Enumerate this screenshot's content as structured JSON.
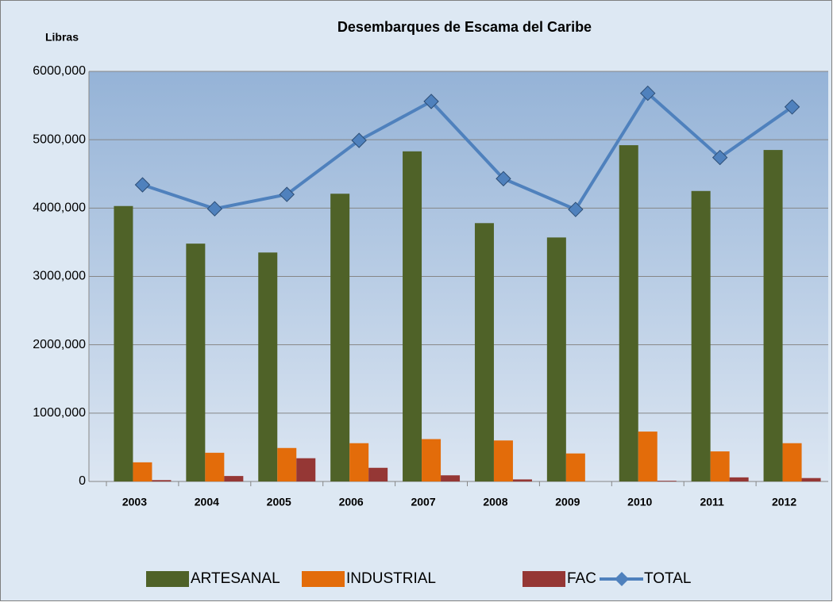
{
  "chart_data": {
    "type": "bar_line",
    "title": "Desembarques de Escama del Caribe",
    "y_label": "Libras",
    "categories": [
      "2003",
      "2004",
      "2005",
      "2006",
      "2007",
      "2008",
      "2009",
      "2010",
      "2011",
      "2012"
    ],
    "series": [
      {
        "name": "ARTESANAL",
        "type": "bar",
        "color": "#4f6228",
        "values": [
          4030000,
          3480000,
          3350000,
          4210000,
          4830000,
          3780000,
          3570000,
          4920000,
          4250000,
          4850000
        ]
      },
      {
        "name": "INDUSTRIAL",
        "type": "bar",
        "color": "#e36c0a",
        "values": [
          280000,
          420000,
          490000,
          560000,
          620000,
          600000,
          410000,
          730000,
          440000,
          560000
        ]
      },
      {
        "name": "FAC",
        "type": "bar",
        "color": "#953735",
        "values": [
          20000,
          80000,
          340000,
          200000,
          90000,
          30000,
          0,
          10000,
          60000,
          50000
        ]
      },
      {
        "name": "TOTAL",
        "type": "line",
        "color": "#4f81bd",
        "values": [
          4340000,
          3990000,
          4200000,
          4990000,
          5560000,
          4430000,
          3980000,
          5680000,
          4740000,
          5480000
        ]
      }
    ],
    "ylim": [
      0,
      6000000
    ],
    "yticks": [
      0,
      {
        "value": 1000000,
        "label": "1000,000"
      },
      {
        "value": 2000000,
        "label": "2000,000"
      },
      {
        "value": 3000000,
        "label": "3000,000"
      },
      {
        "value": 4000000,
        "label": "4000,000"
      },
      {
        "value": 5000000,
        "label": "5000,000"
      },
      {
        "value": 6000000,
        "label": "6000,000"
      }
    ],
    "grid": true,
    "legend": "bottom"
  }
}
